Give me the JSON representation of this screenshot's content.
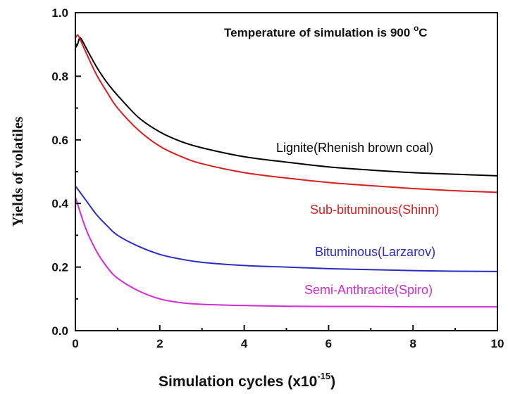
{
  "chart_data": {
    "type": "line",
    "title": "",
    "xlabel": "Simulation cycles (x10",
    "xlabel_exponent": "-15",
    "xlabel_suffix": ")",
    "ylabel": "Yields of volatiles",
    "xlim": [
      0,
      10
    ],
    "ylim": [
      0,
      1.0
    ],
    "x_ticks": [
      "0",
      "2",
      "4",
      "6",
      "8",
      "10"
    ],
    "y_ticks": [
      "0.0",
      "0.2",
      "0.4",
      "0.6",
      "0.8",
      "1.0"
    ],
    "grid": false,
    "legend": "inline labels",
    "annotation": {
      "text": "Temperature of simulation is 900 ",
      "superscript": "o",
      "suffix": "C"
    },
    "series": [
      {
        "name": "Lignite(Rhenish brown coal)",
        "color": "#000000",
        "x": [
          0,
          0.05,
          0.1,
          0.15,
          0.25,
          0.5,
          0.75,
          1,
          1.5,
          2,
          2.5,
          3,
          4,
          5,
          6,
          7,
          8,
          9,
          10
        ],
        "y": [
          0.89,
          0.9,
          0.92,
          0.915,
          0.89,
          0.83,
          0.78,
          0.74,
          0.67,
          0.625,
          0.595,
          0.575,
          0.547,
          0.53,
          0.515,
          0.505,
          0.497,
          0.492,
          0.487
        ]
      },
      {
        "name": "Sub-bituminous(Shinn)",
        "color": "#d81f1f",
        "x": [
          0,
          0.05,
          0.1,
          0.15,
          0.25,
          0.5,
          0.75,
          1,
          1.5,
          2,
          2.5,
          3,
          4,
          5,
          6,
          7,
          8,
          9,
          10
        ],
        "y": [
          0.92,
          0.93,
          0.92,
          0.905,
          0.875,
          0.805,
          0.75,
          0.7,
          0.63,
          0.58,
          0.548,
          0.525,
          0.497,
          0.48,
          0.466,
          0.456,
          0.447,
          0.44,
          0.435
        ]
      },
      {
        "name": "Bituminous(Larzarov)",
        "color": "#2c2cc4",
        "x": [
          0,
          0.25,
          0.5,
          0.75,
          1,
          1.5,
          2,
          2.5,
          3,
          4,
          5,
          6,
          7,
          8,
          9,
          10
        ],
        "y": [
          0.455,
          0.41,
          0.365,
          0.33,
          0.3,
          0.265,
          0.24,
          0.225,
          0.215,
          0.205,
          0.2,
          0.195,
          0.192,
          0.189,
          0.187,
          0.186
        ]
      },
      {
        "name": "Semi-Anthracite(Spiro)",
        "color": "#d42bd4",
        "x": [
          0,
          0.25,
          0.5,
          0.75,
          1,
          1.5,
          2,
          2.5,
          3,
          4,
          5,
          6,
          7,
          8,
          9,
          10
        ],
        "y": [
          0.42,
          0.32,
          0.25,
          0.2,
          0.165,
          0.125,
          0.1,
          0.088,
          0.083,
          0.079,
          0.077,
          0.076,
          0.076,
          0.075,
          0.075,
          0.075
        ]
      }
    ]
  }
}
